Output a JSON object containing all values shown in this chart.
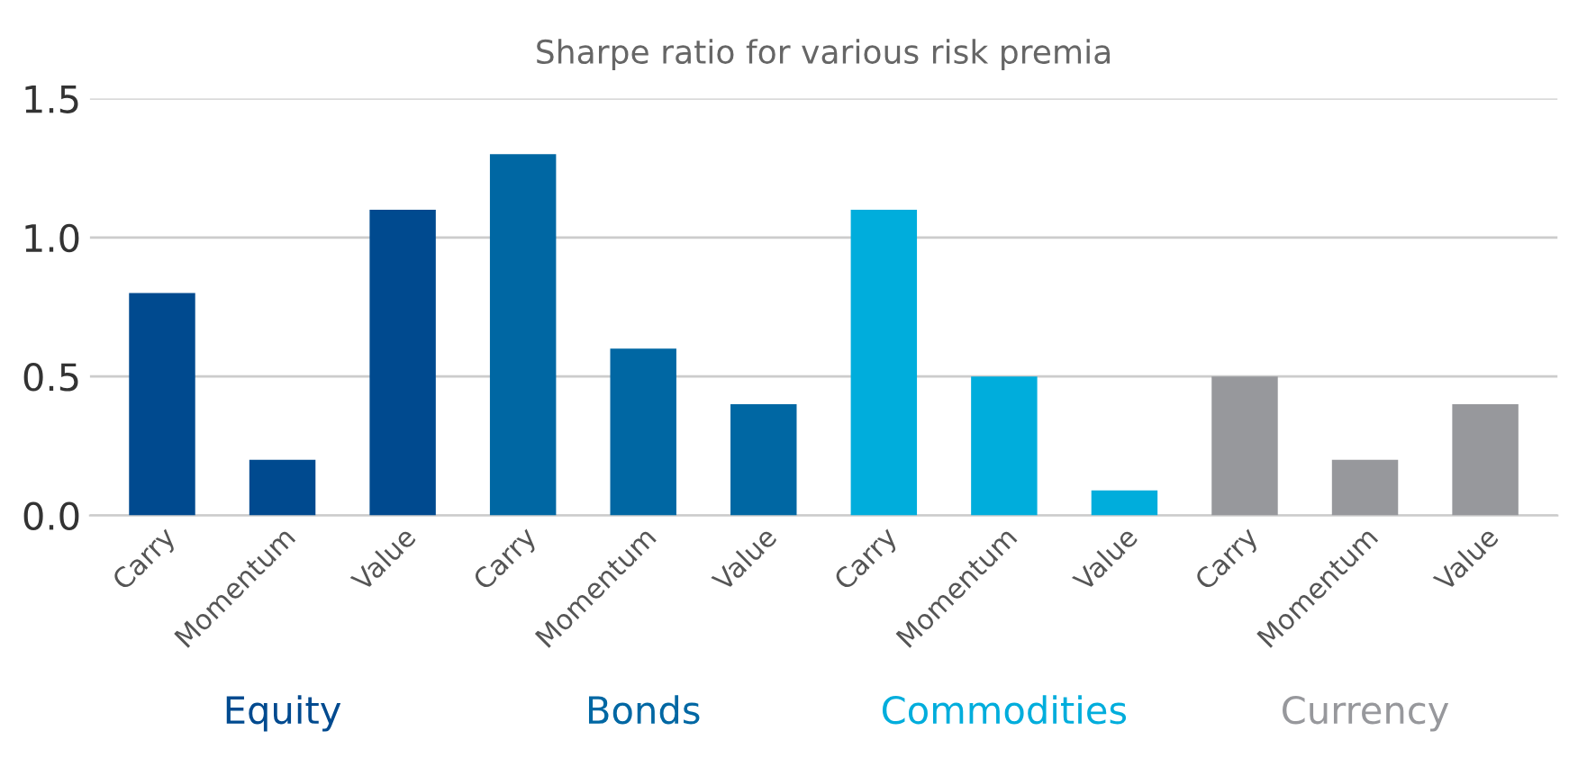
{
  "chart_data": {
    "type": "bar",
    "title": "Sharpe ratio for various risk premia",
    "categories": [
      "Carry",
      "Momentum",
      "Value",
      "Carry",
      "Momentum",
      "Value",
      "Carry",
      "Momentum",
      "Value",
      "Carry",
      "Momentum",
      "Value"
    ],
    "series": [
      {
        "name": "Equity",
        "color": "#004a8f",
        "values": [
          0.8,
          0.2,
          1.1,
          null,
          null,
          null,
          null,
          null,
          null,
          null,
          null,
          null
        ]
      },
      {
        "name": "Bonds",
        "color": "#0067a3",
        "values": [
          null,
          null,
          null,
          1.3,
          0.6,
          0.4,
          null,
          null,
          null,
          null,
          null,
          null
        ]
      },
      {
        "name": "Commodities",
        "color": "#00addc",
        "values": [
          null,
          null,
          null,
          null,
          null,
          null,
          1.1,
          0.5,
          0.09,
          null,
          null,
          null
        ]
      },
      {
        "name": "Currency",
        "color": "#97989c",
        "values": [
          null,
          null,
          null,
          null,
          null,
          null,
          null,
          null,
          null,
          0.5,
          0.2,
          0.4
        ]
      }
    ],
    "ylim": [
      0,
      1.5
    ],
    "yticks": [
      {
        "value": 0,
        "label": "0.0"
      },
      {
        "value": 0.5,
        "label": "0.5"
      },
      {
        "value": 1.0,
        "label": "1.0"
      },
      {
        "value": 1.5,
        "label": "1.5"
      }
    ],
    "grid": "y",
    "legend": "bottom"
  }
}
